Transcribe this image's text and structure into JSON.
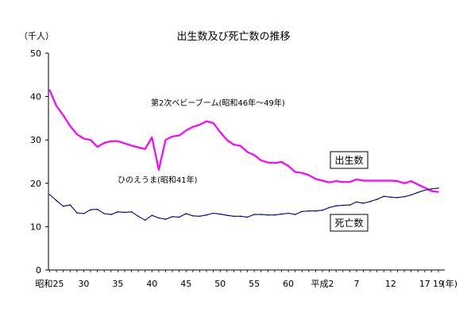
{
  "chart_data": {
    "type": "line",
    "title": "出生数及び死亡数の推移",
    "ylabel": "（千人）",
    "xlabel": "",
    "ylim": [
      0,
      50
    ],
    "yticks": [
      "0",
      "10",
      "20",
      "30",
      "40",
      "50"
    ],
    "x_unit_label": "(年)",
    "xlim": [
      1950,
      2007
    ],
    "x_ticks": [
      {
        "label": "昭和25",
        "x": 1950
      },
      {
        "label": "30",
        "x": 1955
      },
      {
        "label": "35",
        "x": 1960
      },
      {
        "label": "40",
        "x": 1965
      },
      {
        "label": "45",
        "x": 1970
      },
      {
        "label": "50",
        "x": 1975
      },
      {
        "label": "55",
        "x": 1980
      },
      {
        "label": "60",
        "x": 1985
      },
      {
        "label": "平成2",
        "x": 1990
      },
      {
        "label": "7",
        "x": 1995
      },
      {
        "label": "12",
        "x": 2000
      },
      {
        "label": "17",
        "x": 2005
      },
      {
        "label": "19",
        "x": 2007
      }
    ],
    "x": [
      1950,
      1951,
      1952,
      1953,
      1954,
      1955,
      1956,
      1957,
      1958,
      1959,
      1960,
      1961,
      1962,
      1963,
      1964,
      1965,
      1966,
      1967,
      1968,
      1969,
      1970,
      1971,
      1972,
      1973,
      1974,
      1975,
      1976,
      1977,
      1978,
      1979,
      1980,
      1981,
      1982,
      1983,
      1984,
      1985,
      1986,
      1987,
      1988,
      1989,
      1990,
      1991,
      1992,
      1993,
      1994,
      1995,
      1996,
      1997,
      1998,
      1999,
      2000,
      2001,
      2002,
      2003,
      2004,
      2005,
      2006,
      2007
    ],
    "series": [
      {
        "name": "出生数",
        "color": "#ff00ff",
        "values": [
          41.5,
          37.8,
          35.7,
          33.2,
          31.3,
          30.3,
          30.0,
          28.4,
          29.3,
          29.7,
          29.7,
          29.2,
          28.7,
          28.3,
          27.9,
          30.6,
          23.1,
          30.0,
          30.8,
          31.0,
          32.2,
          33.0,
          33.5,
          34.3,
          33.9,
          31.8,
          30.0,
          28.9,
          28.6,
          27.2,
          26.5,
          25.3,
          24.8,
          24.7,
          24.9,
          24.0,
          22.6,
          22.4,
          21.9,
          21.0,
          20.6,
          20.2,
          20.5,
          20.3,
          20.3,
          20.9,
          20.6,
          20.6,
          20.6,
          20.6,
          20.6,
          20.5,
          20.0,
          20.5,
          19.7,
          19.0,
          18.2,
          18.0
        ]
      },
      {
        "name": "死亡数",
        "color": "#000080",
        "values": [
          17.4,
          16.0,
          14.7,
          15.0,
          13.2,
          13.0,
          13.9,
          14.0,
          13.0,
          12.8,
          13.4,
          13.3,
          13.4,
          12.4,
          11.5,
          12.6,
          12.0,
          11.7,
          12.3,
          12.2,
          13.0,
          12.5,
          12.4,
          12.7,
          13.1,
          12.9,
          12.6,
          12.4,
          12.4,
          12.2,
          12.8,
          12.8,
          12.7,
          12.7,
          12.9,
          13.1,
          12.8,
          13.5,
          13.6,
          13.6,
          13.8,
          14.4,
          14.8,
          14.9,
          15.0,
          15.7,
          15.4,
          15.8,
          16.3,
          17.0,
          16.8,
          16.7,
          16.9,
          17.3,
          17.9,
          18.4,
          18.7,
          18.9
        ]
      }
    ],
    "annotations": [
      {
        "text": "第2次ベビーブーム(昭和46年～49年)"
      },
      {
        "text": "ひのえうま(昭和41年)"
      }
    ],
    "legend": [
      {
        "text": "出生数",
        "boxed": true
      },
      {
        "text": "死亡数",
        "boxed": true
      }
    ],
    "grid": false,
    "legend_placement": "inline-right"
  }
}
